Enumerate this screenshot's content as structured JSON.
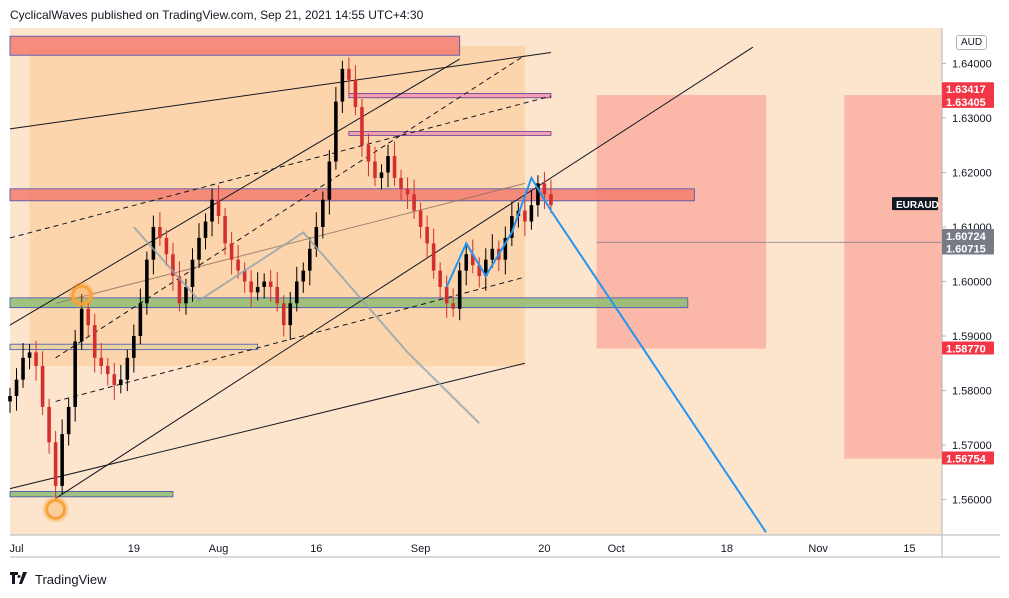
{
  "header": {
    "text": "CyclicalWaves published on TradingView.com, Sep 21, 2021 14:55 UTC+4:30"
  },
  "footer": {
    "brand": "TradingView",
    "logo": "tradingview-logo-icon"
  },
  "currency_label": "AUD",
  "colors": {
    "up": "#000000",
    "down": "#d32f2f",
    "channel_fill": "#fbc892",
    "pale_fill": "#fde4cc",
    "resistance_zone": "#f47c70",
    "support_zone": "#8fbc72",
    "pivot_marker": "#f7a23c",
    "projection_zone": "#f9a59a",
    "wave_line": "#2196f3",
    "price_label": "#f23645"
  },
  "chart_data": {
    "type": "candlestick",
    "symbol": "EURAUD",
    "y_range": [
      1.5535,
      1.6465
    ],
    "x_range": [
      "2021-06-30",
      "2021-11-20"
    ],
    "y_ticks": [
      "1.64000",
      "1.63000",
      "1.62000",
      "1.61000",
      "1.60000",
      "1.59000",
      "1.58000",
      "1.57000",
      "1.56000"
    ],
    "y_tick_values": [
      1.64,
      1.63,
      1.62,
      1.61,
      1.6,
      1.59,
      1.58,
      1.57,
      1.56
    ],
    "x_ticks": [
      {
        "label": "Jul",
        "date": "2021-07-01"
      },
      {
        "label": "19",
        "date": "2021-07-19"
      },
      {
        "label": "Aug",
        "date": "2021-08-01"
      },
      {
        "label": "16",
        "date": "2021-08-16"
      },
      {
        "label": "Sep",
        "date": "2021-09-01"
      },
      {
        "label": "20",
        "date": "2021-09-20"
      },
      {
        "label": "Oct",
        "date": "2021-10-01"
      },
      {
        "label": "18",
        "date": "2021-10-18"
      },
      {
        "label": "Nov",
        "date": "2021-11-01"
      },
      {
        "label": "15",
        "date": "2021-11-15"
      }
    ],
    "price_labels": [
      {
        "text": "1.63417",
        "value": 1.63417,
        "style": "red"
      },
      {
        "text": "1.63405",
        "value": 1.63405,
        "style": "red"
      },
      {
        "text": "EURAUD",
        "value": 1.6142,
        "style": "dark"
      },
      {
        "text": "1.60724",
        "value": 1.60724,
        "style": "gray"
      },
      {
        "text": "1.60715",
        "value": 1.60715,
        "style": "gray"
      },
      {
        "text": "1.58770",
        "value": 1.5877,
        "style": "red"
      },
      {
        "text": "1.56754",
        "value": 1.56754,
        "style": "red"
      }
    ],
    "closes": [
      [
        "2021-06-30",
        1.579
      ],
      [
        "2021-07-01",
        1.582
      ],
      [
        "2021-07-02",
        1.586
      ],
      [
        "2021-07-03",
        1.587
      ],
      [
        "2021-07-04",
        1.5845
      ],
      [
        "2021-07-05",
        1.577
      ],
      [
        "2021-07-06",
        1.5705
      ],
      [
        "2021-07-07",
        1.5625
      ],
      [
        "2021-07-08",
        1.572
      ],
      [
        "2021-07-09",
        1.577
      ],
      [
        "2021-07-10",
        1.589
      ],
      [
        "2021-07-11",
        1.595
      ],
      [
        "2021-07-12",
        1.592
      ],
      [
        "2021-07-13",
        1.586
      ],
      [
        "2021-07-14",
        1.5845
      ],
      [
        "2021-07-15",
        1.583
      ],
      [
        "2021-07-16",
        1.581
      ],
      [
        "2021-07-17",
        1.582
      ],
      [
        "2021-07-18",
        1.586
      ],
      [
        "2021-07-19",
        1.59
      ],
      [
        "2021-07-20",
        1.596
      ],
      [
        "2021-07-21",
        1.604
      ],
      [
        "2021-07-22",
        1.61
      ],
      [
        "2021-07-23",
        1.608
      ],
      [
        "2021-07-24",
        1.605
      ],
      [
        "2021-07-25",
        1.601
      ],
      [
        "2021-07-26",
        1.596
      ],
      [
        "2021-07-27",
        1.599
      ],
      [
        "2021-07-28",
        1.604
      ],
      [
        "2021-07-29",
        1.608
      ],
      [
        "2021-07-30",
        1.611
      ],
      [
        "2021-07-31",
        1.615
      ],
      [
        "2021-08-01",
        1.612
      ],
      [
        "2021-08-02",
        1.607
      ],
      [
        "2021-08-03",
        1.604
      ],
      [
        "2021-08-04",
        1.602
      ],
      [
        "2021-08-05",
        1.6
      ],
      [
        "2021-08-06",
        1.598
      ],
      [
        "2021-08-07",
        1.599
      ],
      [
        "2021-08-08",
        1.6
      ],
      [
        "2021-08-09",
        1.599
      ],
      [
        "2021-08-10",
        1.596
      ],
      [
        "2021-08-11",
        1.592
      ],
      [
        "2021-08-12",
        1.596
      ],
      [
        "2021-08-13",
        1.6
      ],
      [
        "2021-08-14",
        1.602
      ],
      [
        "2021-08-15",
        1.606
      ],
      [
        "2021-08-16",
        1.61
      ],
      [
        "2021-08-17",
        1.615
      ],
      [
        "2021-08-18",
        1.622
      ],
      [
        "2021-08-19",
        1.633
      ],
      [
        "2021-08-20",
        1.639
      ],
      [
        "2021-08-21",
        1.637
      ],
      [
        "2021-08-22",
        1.632
      ],
      [
        "2021-08-23",
        1.625
      ],
      [
        "2021-08-24",
        1.622
      ],
      [
        "2021-08-25",
        1.619
      ],
      [
        "2021-08-26",
        1.62
      ],
      [
        "2021-08-27",
        1.623
      ],
      [
        "2021-08-28",
        1.619
      ],
      [
        "2021-08-29",
        1.617
      ],
      [
        "2021-08-30",
        1.616
      ],
      [
        "2021-08-31",
        1.613
      ],
      [
        "2021-09-01",
        1.61
      ],
      [
        "2021-09-02",
        1.607
      ],
      [
        "2021-09-03",
        1.602
      ],
      [
        "2021-09-04",
        1.599
      ],
      [
        "2021-09-05",
        1.596
      ],
      [
        "2021-09-06",
        1.595
      ],
      [
        "2021-09-07",
        1.602
      ],
      [
        "2021-09-08",
        1.605
      ],
      [
        "2021-09-09",
        1.603
      ],
      [
        "2021-09-10",
        1.601
      ],
      [
        "2021-09-11",
        1.604
      ],
      [
        "2021-09-12",
        1.606
      ],
      [
        "2021-09-13",
        1.604
      ],
      [
        "2021-09-14",
        1.608
      ],
      [
        "2021-09-15",
        1.612
      ],
      [
        "2021-09-16",
        1.613
      ],
      [
        "2021-09-17",
        1.611
      ],
      [
        "2021-09-18",
        1.614
      ],
      [
        "2021-09-19",
        1.618
      ],
      [
        "2021-09-20",
        1.616
      ],
      [
        "2021-09-21",
        1.614
      ]
    ]
  },
  "drawings": {
    "zones": [
      {
        "name": "resistance-zone-top",
        "from": "2021-06-30",
        "to": "2021-09-07",
        "top": 1.645,
        "bottom": 1.6415,
        "color": "#f47c70"
      },
      {
        "name": "resistance-zone-mid",
        "from": "2021-06-30",
        "to": "2021-10-13",
        "top": 1.617,
        "bottom": 1.6148,
        "color": "#f47c70"
      },
      {
        "name": "support-zone-mid",
        "from": "2021-06-30",
        "to": "2021-10-12",
        "top": 1.597,
        "bottom": 1.5952,
        "color": "#8fbc72"
      },
      {
        "name": "support-zone-low",
        "from": "2021-06-30",
        "to": "2021-08-07",
        "top": 1.5885,
        "bottom": 1.5875,
        "color": "#e8d3a0"
      },
      {
        "name": "support-zone-bottom",
        "from": "2021-06-30",
        "to": "2021-07-25",
        "top": 1.5615,
        "bottom": 1.5605,
        "color": "#8fbc72"
      }
    ],
    "thin_zones": [
      {
        "name": "thin-zone-1",
        "from": "2021-08-21",
        "to": "2021-09-21",
        "top": 1.6345,
        "bottom": 1.6337
      },
      {
        "name": "thin-zone-2",
        "from": "2021-08-21",
        "to": "2021-09-21",
        "top": 1.6275,
        "bottom": 1.6268
      }
    ],
    "projection_zones": [
      {
        "name": "target-zone-a",
        "from": "2021-09-28",
        "to": "2021-10-24",
        "top": 1.6342,
        "bottom": 1.5877
      },
      {
        "name": "target-zone-b",
        "from": "2021-11-05",
        "to": "2021-11-20",
        "top": 1.6342,
        "bottom": 1.5675
      }
    ],
    "channel_fill": {
      "from": "2021-07-03",
      "to": "2021-09-17",
      "top": 1.6432,
      "bottom": 1.5845
    },
    "pivot_markers": [
      {
        "date": "2021-07-11",
        "value": 1.5975
      },
      {
        "date": "2021-07-07",
        "value": 1.5582
      }
    ],
    "wave_points": [
      [
        "2021-09-05",
        1.599
      ],
      [
        "2021-09-08",
        1.607
      ],
      [
        "2021-09-11",
        1.601
      ],
      [
        "2021-09-15",
        1.609
      ],
      [
        "2021-09-18",
        1.619
      ],
      [
        "2021-09-21",
        1.613
      ],
      [
        "2021-10-24",
        1.554
      ]
    ],
    "gray_wave_points": [
      [
        "2021-07-19",
        1.61
      ],
      [
        "2021-07-29",
        1.5965
      ],
      [
        "2021-08-14",
        1.609
      ],
      [
        "2021-08-30",
        1.587
      ],
      [
        "2021-09-10",
        1.574
      ]
    ],
    "trend_lines": [
      {
        "from": [
          "2021-06-30",
          1.592
        ],
        "to": [
          "2021-09-07",
          1.6408
        ],
        "style": "solid"
      },
      {
        "from": [
          "2021-06-30",
          1.628
        ],
        "to": [
          "2021-09-21",
          1.642
        ],
        "style": "solid"
      },
      {
        "from": [
          "2021-07-07",
          1.5602
        ],
        "to": [
          "2021-10-22",
          1.643
        ],
        "style": "solid"
      },
      {
        "from": [
          "2021-06-30",
          1.562
        ],
        "to": [
          "2021-09-17",
          1.585
        ],
        "style": "solid"
      },
      {
        "from": [
          "2021-06-30",
          1.608
        ],
        "to": [
          "2021-09-21",
          1.634
        ],
        "style": "dashed"
      },
      {
        "from": [
          "2021-07-07",
          1.586
        ],
        "to": [
          "2021-09-17",
          1.6415
        ],
        "style": "dashed"
      },
      {
        "from": [
          "2021-07-07",
          1.578
        ],
        "to": [
          "2021-09-17",
          1.6008
        ],
        "style": "dashed"
      },
      {
        "from": [
          "2021-07-07",
          1.596
        ],
        "to": [
          "2021-09-17",
          1.618
        ],
        "style": "solid-light"
      }
    ],
    "last_price_line": {
      "value": 1.6072,
      "from": "2021-09-28"
    }
  }
}
